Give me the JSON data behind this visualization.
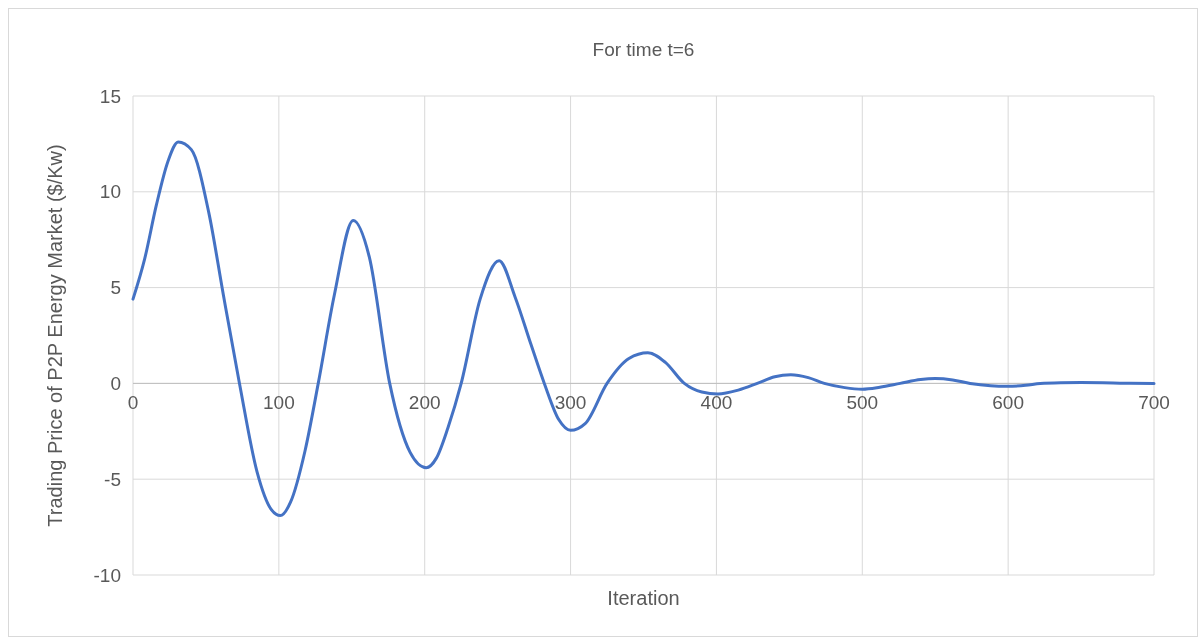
{
  "chart_data": {
    "type": "line",
    "title": "For time t=6",
    "xlabel": "Iteration",
    "ylabel": "Trading Price of P2P Energy Market ($/Kw)",
    "x": [
      0,
      8,
      16,
      24,
      31,
      40,
      52,
      62,
      73,
      85,
      95,
      101,
      108,
      118,
      127,
      138,
      151,
      162,
      176,
      190,
      201,
      208,
      216,
      225,
      238,
      251,
      262,
      273,
      282,
      292,
      300,
      310,
      325,
      340,
      353,
      365,
      378,
      390,
      401,
      415,
      428,
      440,
      451,
      463,
      474,
      488,
      500,
      512,
      526,
      540,
      550,
      562,
      574,
      588,
      599,
      612,
      622,
      636,
      650,
      665,
      680,
      700
    ],
    "series": [
      {
        "color": "#4472c4",
        "values": [
          4.4,
          6.5,
          9.3,
          11.6,
          12.6,
          12.2,
          8.9,
          4.6,
          0,
          -4.6,
          -6.6,
          -6.9,
          -6.2,
          -3.5,
          0,
          4.6,
          8.5,
          6.6,
          0,
          -3.6,
          -4.4,
          -3.9,
          -2.3,
          0,
          4.4,
          6.4,
          4.5,
          2,
          0,
          -1.9,
          -2.45,
          -2.1,
          0,
          1.3,
          1.6,
          1.1,
          0,
          -0.45,
          -0.55,
          -0.35,
          0,
          0.35,
          0.45,
          0.3,
          0,
          -0.22,
          -0.3,
          -0.2,
          0,
          0.2,
          0.25,
          0.18,
          0,
          -0.12,
          -0.15,
          -0.1,
          0,
          0.04,
          0.05,
          0.04,
          0.01,
          0
        ]
      }
    ],
    "xlim": [
      0,
      700
    ],
    "xticks": [
      0,
      100,
      200,
      300,
      400,
      500,
      600,
      700
    ],
    "ylim": [
      -10,
      15
    ],
    "yticks": [
      -10,
      -5,
      0,
      5,
      10,
      15
    ],
    "grid": true,
    "line_style": "solid",
    "marker": "none"
  }
}
